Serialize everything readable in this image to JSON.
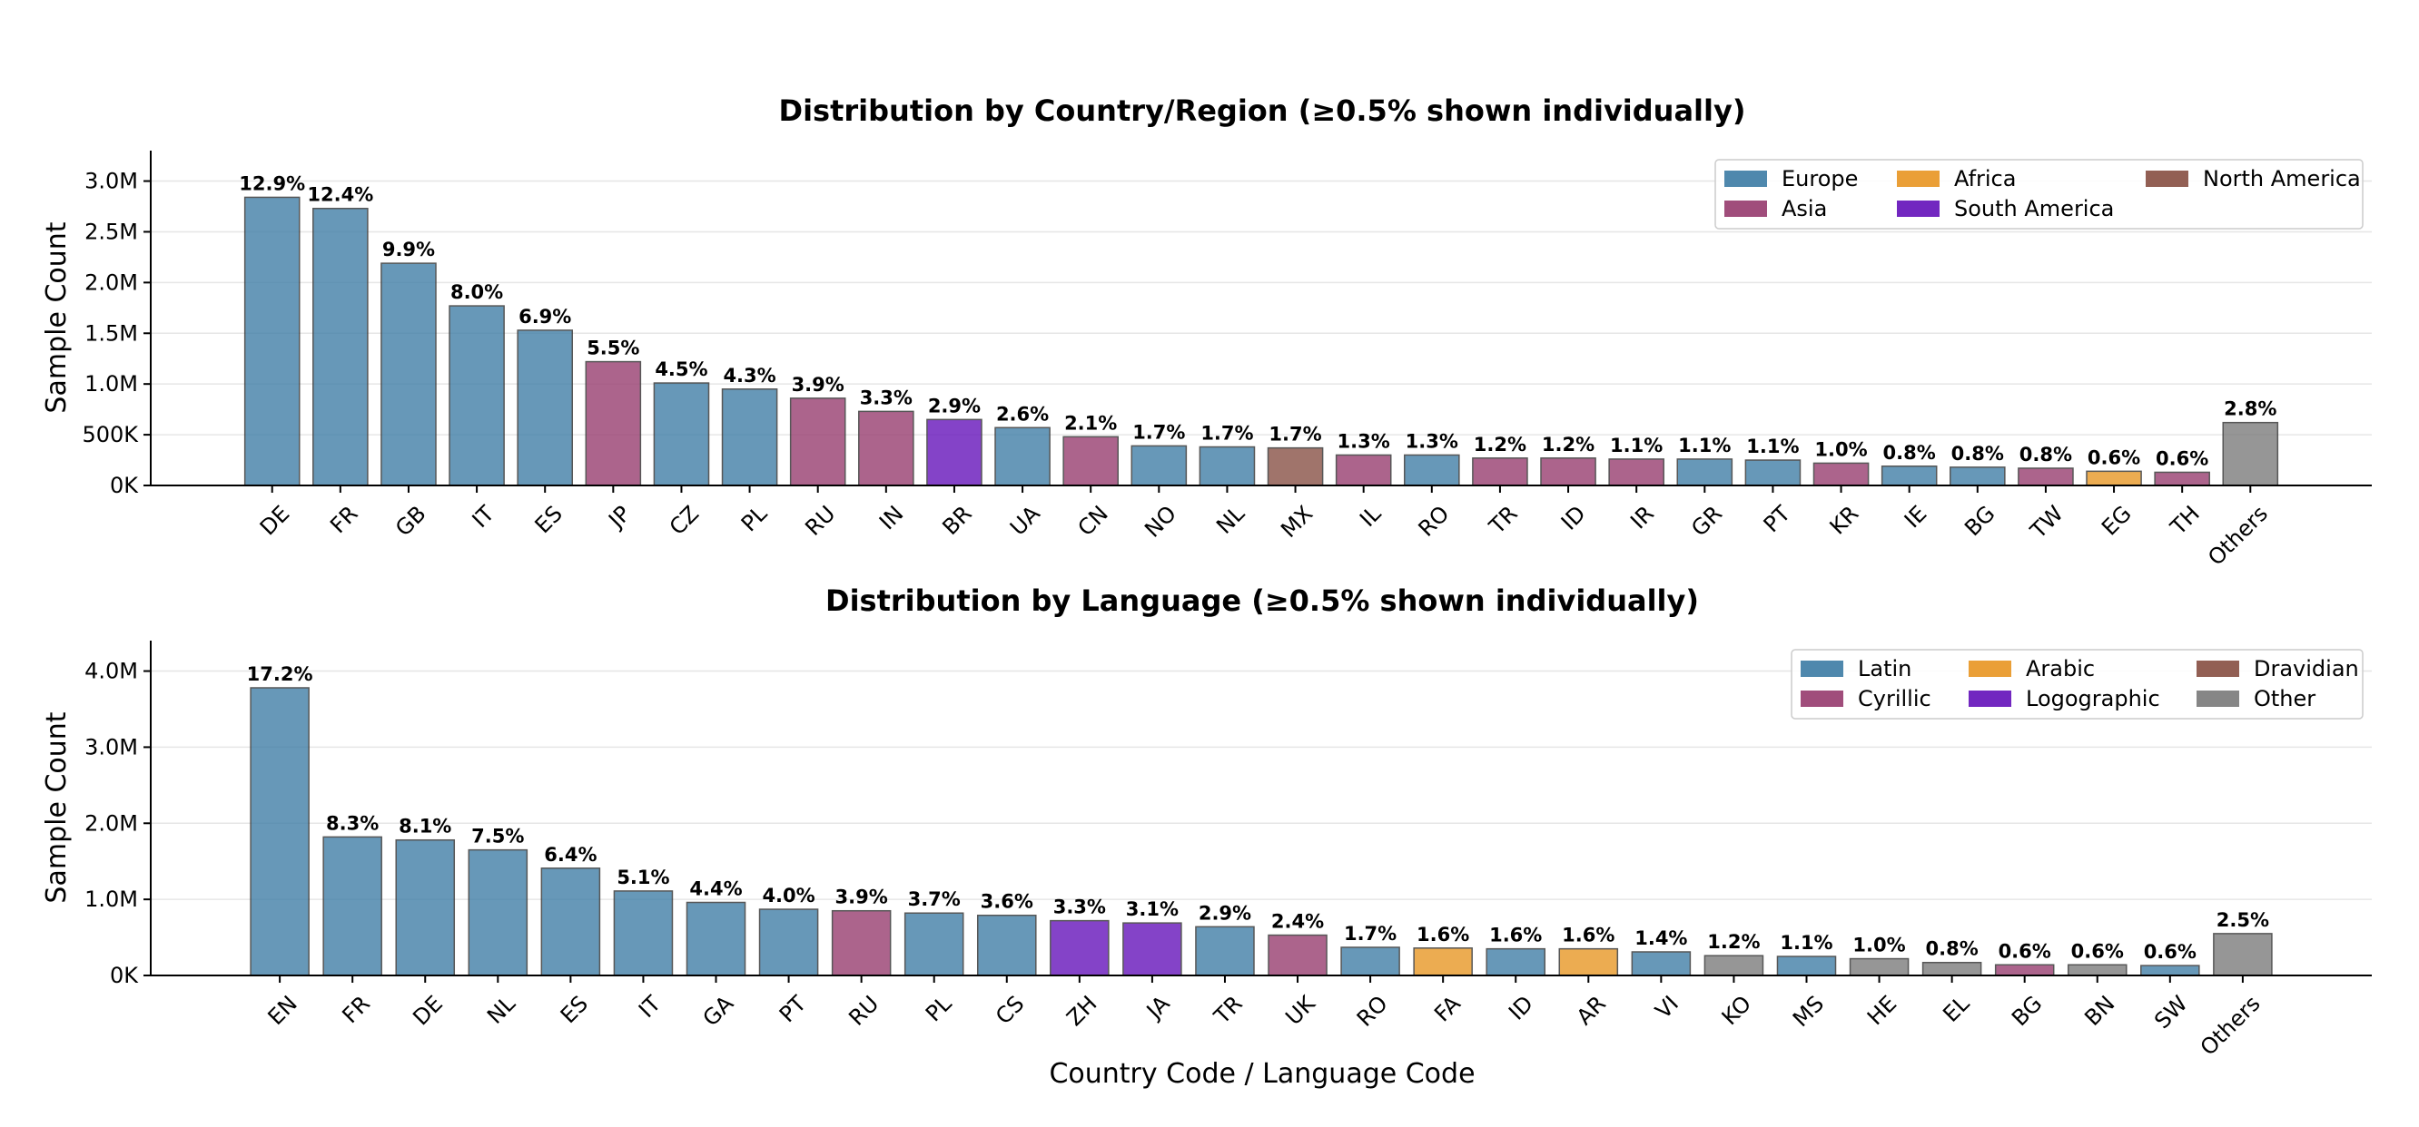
{
  "shared_xlabel": "Country Code / Language Code",
  "chart_data": [
    {
      "type": "bar",
      "title": "Distribution by Country/Region (≥0.5% shown individually)",
      "ylabel": "Sample Count",
      "xlabel": "",
      "ylim": [
        0,
        3300000
      ],
      "yticks": [
        0,
        500000,
        1000000,
        1500000,
        2000000,
        2500000,
        3000000
      ],
      "ytick_labels": [
        "0K",
        "500K",
        "1.0M",
        "1.5M",
        "2.0M",
        "2.5M",
        "3.0M"
      ],
      "grid": "y",
      "legend_position": "top-right",
      "legend": [
        {
          "name": "Europe",
          "color": "#4682a9"
        },
        {
          "name": "Asia",
          "color": "#9b4374"
        },
        {
          "name": "Africa",
          "color": "#e99a2c"
        },
        {
          "name": "South America",
          "color": "#6a1bbd"
        },
        {
          "name": "North America",
          "color": "#8c564b"
        }
      ],
      "categories": [
        "DE",
        "FR",
        "GB",
        "IT",
        "ES",
        "JP",
        "CZ",
        "PL",
        "RU",
        "IN",
        "BR",
        "UA",
        "CN",
        "NO",
        "NL",
        "MX",
        "IL",
        "RO",
        "TR",
        "ID",
        "IR",
        "GR",
        "PT",
        "KR",
        "IE",
        "BG",
        "TW",
        "EG",
        "TH",
        "Others"
      ],
      "values": [
        2840000,
        2730000,
        2190000,
        1770000,
        1530000,
        1220000,
        1010000,
        950000,
        860000,
        730000,
        650000,
        570000,
        480000,
        390000,
        380000,
        370000,
        300000,
        300000,
        270000,
        270000,
        260000,
        260000,
        250000,
        220000,
        190000,
        180000,
        170000,
        140000,
        130000,
        620000
      ],
      "labels": [
        "12.9%",
        "12.4%",
        "9.9%",
        "8.0%",
        "6.9%",
        "5.5%",
        "4.5%",
        "4.3%",
        "3.9%",
        "3.3%",
        "2.9%",
        "2.6%",
        "2.1%",
        "1.7%",
        "1.7%",
        "1.7%",
        "1.3%",
        "1.3%",
        "1.2%",
        "1.2%",
        "1.1%",
        "1.1%",
        "1.1%",
        "1.0%",
        "0.8%",
        "0.8%",
        "0.8%",
        "0.6%",
        "0.6%",
        "2.8%"
      ],
      "colors": [
        "#4682a9",
        "#4682a9",
        "#4682a9",
        "#4682a9",
        "#4682a9",
        "#9b4374",
        "#4682a9",
        "#4682a9",
        "#9b4374",
        "#9b4374",
        "#6a1bbd",
        "#4682a9",
        "#9b4374",
        "#4682a9",
        "#4682a9",
        "#8c564b",
        "#9b4374",
        "#4682a9",
        "#9b4374",
        "#9b4374",
        "#9b4374",
        "#4682a9",
        "#4682a9",
        "#9b4374",
        "#4682a9",
        "#4682a9",
        "#9b4374",
        "#e99a2c",
        "#9b4374",
        "#7f7f7f"
      ]
    },
    {
      "type": "bar",
      "title": "Distribution by Language (≥0.5% shown individually)",
      "ylabel": "Sample Count",
      "xlabel": "Country Code / Language Code",
      "ylim": [
        0,
        4400000
      ],
      "yticks": [
        0,
        1000000,
        2000000,
        3000000,
        4000000
      ],
      "ytick_labels": [
        "0K",
        "1.0M",
        "2.0M",
        "3.0M",
        "4.0M"
      ],
      "grid": "y",
      "legend_position": "top-right",
      "legend": [
        {
          "name": "Latin",
          "color": "#4682a9"
        },
        {
          "name": "Cyrillic",
          "color": "#9b4374"
        },
        {
          "name": "Arabic",
          "color": "#e99a2c"
        },
        {
          "name": "Logographic",
          "color": "#6a1bbd"
        },
        {
          "name": "Dravidian",
          "color": "#8c564b"
        },
        {
          "name": "Other",
          "color": "#7f7f7f"
        }
      ],
      "categories": [
        "EN",
        "FR",
        "DE",
        "NL",
        "ES",
        "IT",
        "GA",
        "PT",
        "RU",
        "PL",
        "CS",
        "ZH",
        "JA",
        "TR",
        "UK",
        "RO",
        "FA",
        "ID",
        "AR",
        "VI",
        "KO",
        "MS",
        "HE",
        "EL",
        "BG",
        "BN",
        "SW",
        "Others"
      ],
      "values": [
        3780000,
        1820000,
        1780000,
        1650000,
        1410000,
        1110000,
        960000,
        870000,
        850000,
        820000,
        790000,
        720000,
        690000,
        640000,
        530000,
        370000,
        360000,
        350000,
        350000,
        310000,
        260000,
        250000,
        220000,
        170000,
        140000,
        140000,
        130000,
        550000
      ],
      "labels": [
        "17.2%",
        "8.3%",
        "8.1%",
        "7.5%",
        "6.4%",
        "5.1%",
        "4.4%",
        "4.0%",
        "3.9%",
        "3.7%",
        "3.6%",
        "3.3%",
        "3.1%",
        "2.9%",
        "2.4%",
        "1.7%",
        "1.6%",
        "1.6%",
        "1.6%",
        "1.4%",
        "1.2%",
        "1.1%",
        "1.0%",
        "0.8%",
        "0.6%",
        "0.6%",
        "0.6%",
        "2.5%"
      ],
      "colors": [
        "#4682a9",
        "#4682a9",
        "#4682a9",
        "#4682a9",
        "#4682a9",
        "#4682a9",
        "#4682a9",
        "#4682a9",
        "#9b4374",
        "#4682a9",
        "#4682a9",
        "#6a1bbd",
        "#6a1bbd",
        "#4682a9",
        "#9b4374",
        "#4682a9",
        "#e99a2c",
        "#4682a9",
        "#e99a2c",
        "#4682a9",
        "#7f7f7f",
        "#4682a9",
        "#7f7f7f",
        "#7f7f7f",
        "#9b4374",
        "#7f7f7f",
        "#4682a9",
        "#7f7f7f"
      ]
    }
  ]
}
